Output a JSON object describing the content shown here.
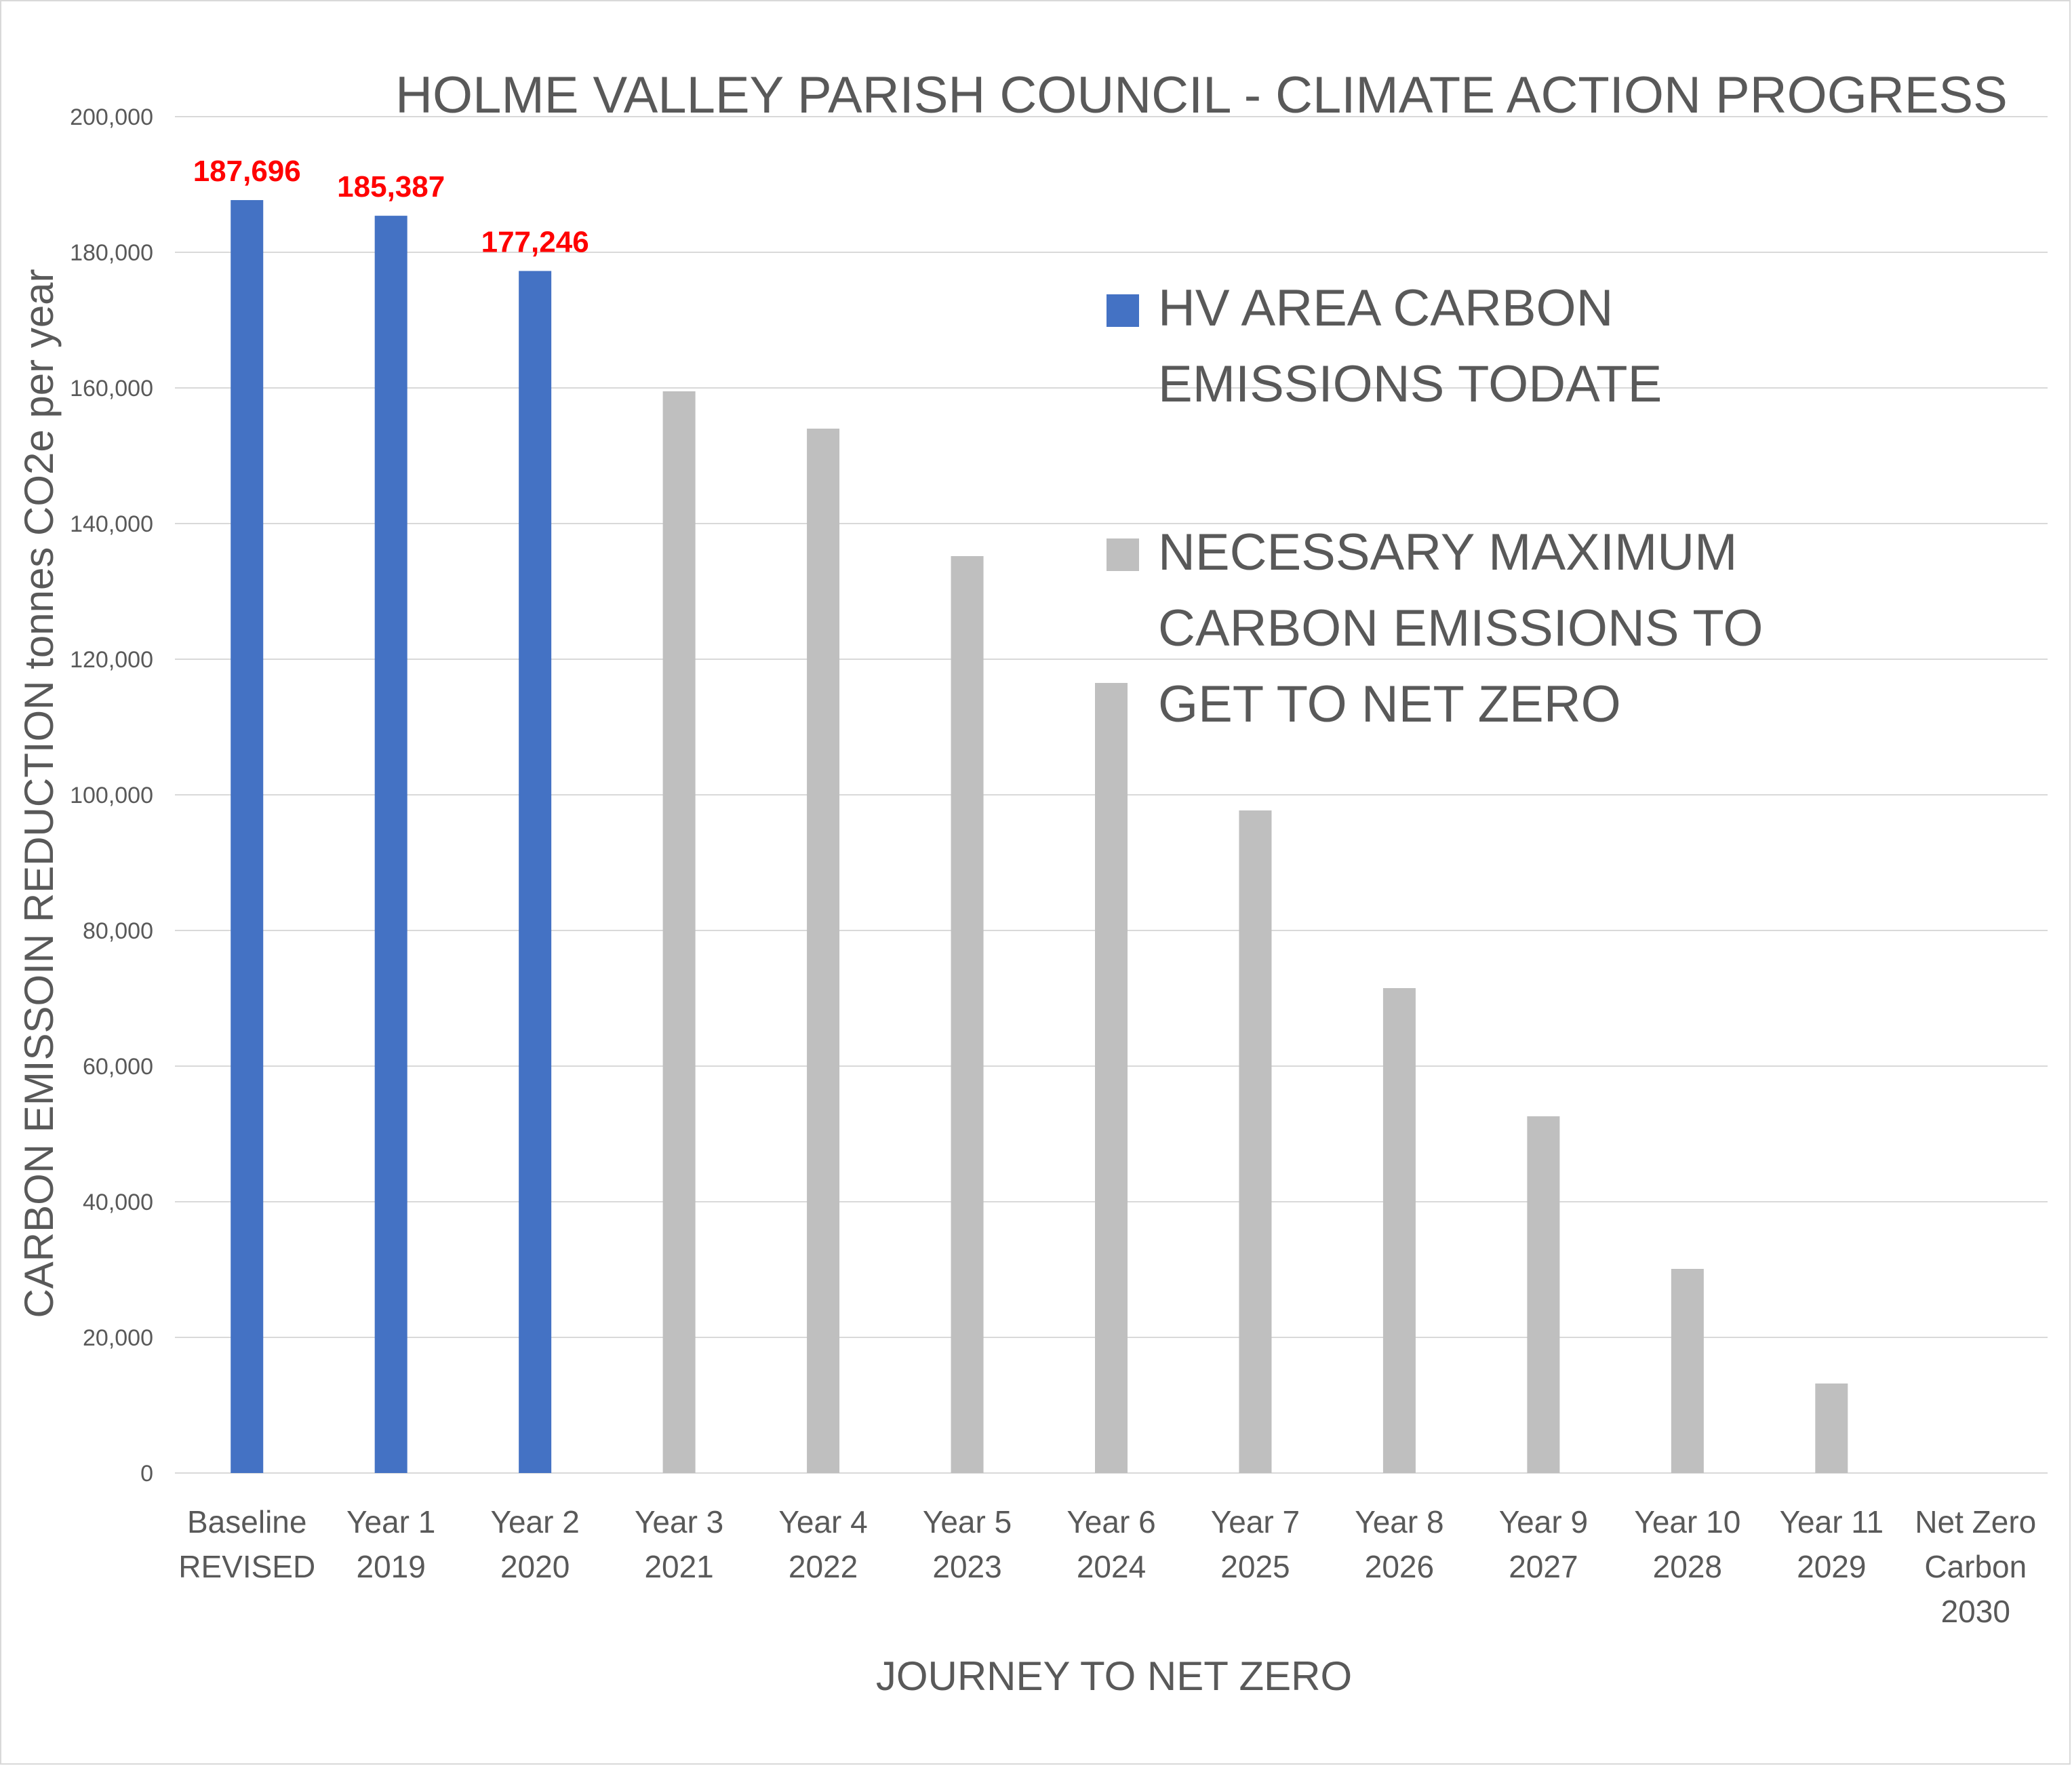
{
  "chart_data": {
    "type": "bar",
    "title": "HOLME VALLEY PARISH COUNCIL - CLIMATE ACTION PROGRESS",
    "xlabel": "JOURNEY TO NET ZERO",
    "ylabel": "CARBON EMISSOIN REDUCTION tonnes CO2e per year",
    "ylim": [
      0,
      200000
    ],
    "ytick_labels": [
      "0",
      "20,000",
      "40,000",
      "60,000",
      "80,000",
      "100,000",
      "120,000",
      "140,000",
      "160,000",
      "180,000",
      "200,000"
    ],
    "grid": "horizontal",
    "legend_position": "upper-right inside plot",
    "categories": [
      [
        "Baseline",
        "REVISED"
      ],
      [
        "Year 1",
        "2019"
      ],
      [
        "Year 2",
        "2020"
      ],
      [
        "Year 3",
        "2021"
      ],
      [
        "Year 4",
        "2022"
      ],
      [
        "Year 5",
        "2023"
      ],
      [
        "Year 6",
        "2024"
      ],
      [
        "Year 7",
        "2025"
      ],
      [
        "Year 8",
        "2026"
      ],
      [
        "Year 9",
        "2027"
      ],
      [
        "Year 10",
        "2028"
      ],
      [
        "Year 11",
        "2029"
      ],
      [
        "Net Zero",
        "Carbon",
        "2030"
      ]
    ],
    "series": [
      {
        "name": "HV AREA CARBON EMISSIONS TODATE",
        "color": "#4472c4",
        "values": [
          187696,
          185387,
          177246,
          null,
          null,
          null,
          null,
          null,
          null,
          null,
          null,
          null,
          null
        ],
        "data_labels": [
          "187,696",
          "185,387",
          "177,246",
          null,
          null,
          null,
          null,
          null,
          null,
          null,
          null,
          null,
          null
        ],
        "data_label_color": "#ff0000"
      },
      {
        "name": "NECESSARY MAXIMUM CARBON EMISSIONS TO GET TO NET ZERO",
        "color": "#bfbfbf",
        "values": [
          null,
          null,
          null,
          159500,
          154000,
          135200,
          116500,
          97700,
          71500,
          52600,
          30100,
          13200,
          0
        ]
      }
    ],
    "legend_lines": [
      [
        "HV AREA CARBON",
        "EMISSIONS TODATE"
      ],
      [
        "NECESSARY MAXIMUM",
        "CARBON EMISSIONS TO",
        "GET TO NET ZERO"
      ]
    ]
  }
}
